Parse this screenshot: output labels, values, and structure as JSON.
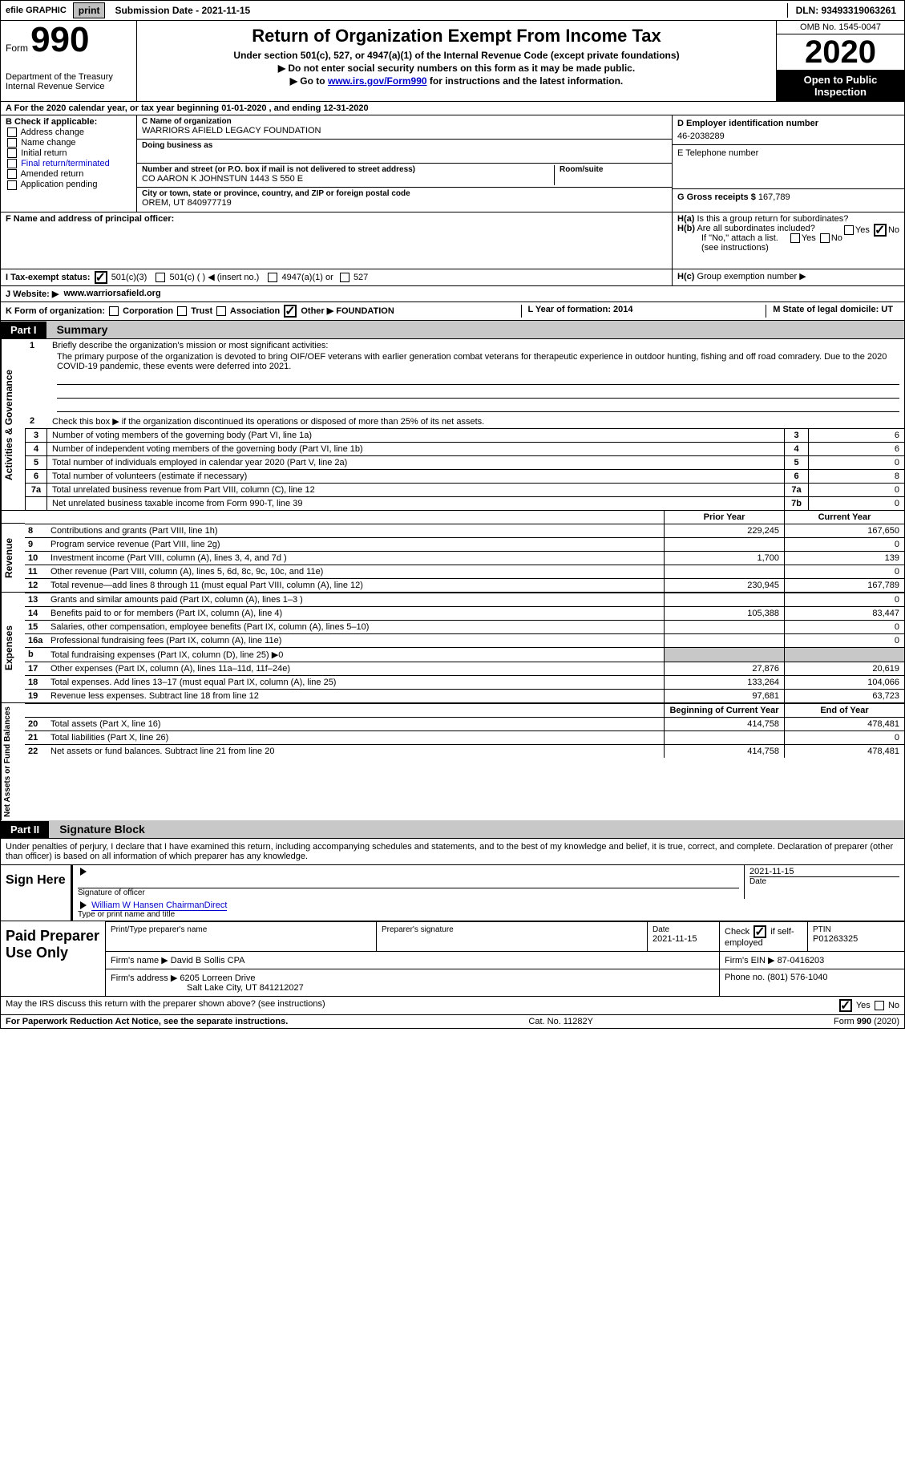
{
  "topbar": {
    "efile_label": "efile GRAPHIC",
    "print_btn": "print",
    "submission_date_label": "Submission Date - 2021-11-15",
    "dln_label": "DLN: 93493319063261"
  },
  "header": {
    "form_word": "Form",
    "form_number": "990",
    "dept": "Department of the Treasury\nInternal Revenue Service",
    "title": "Return of Organization Exempt From Income Tax",
    "subtitle": "Under section 501(c), 527, or 4947(a)(1) of the Internal Revenue Code (except private foundations)",
    "line1": "▶ Do not enter social security numbers on this form as it may be made public.",
    "line2_pre": "▶ Go to ",
    "line2_link": "www.irs.gov/Form990",
    "line2_post": " for instructions and the latest information.",
    "omb": "OMB No. 1545-0047",
    "year": "2020",
    "inspection": "Open to Public Inspection"
  },
  "a_row": "For the 2020 calendar year, or tax year beginning 01-01-2020   , and ending 12-31-2020",
  "colB": {
    "head": "B Check if applicable:",
    "opts": [
      "Address change",
      "Name change",
      "Initial return",
      "Final return/terminated",
      "Amended return",
      "Application pending"
    ]
  },
  "colC": {
    "name_label": "C Name of organization",
    "name_val": "WARRIORS AFIELD LEGACY FOUNDATION",
    "dba_label": "Doing business as",
    "addr_label": "Number and street (or P.O. box if mail is not delivered to street address)",
    "addr_val": "CO AARON K JOHNSTUN 1443 S 550 E",
    "room_label": "Room/suite",
    "city_label": "City or town, state or province, country, and ZIP or foreign postal code",
    "city_val": "OREM, UT  840977719",
    "f_label": "F Name and address of principal officer:"
  },
  "colD": {
    "ein_label": "D Employer identification number",
    "ein_val": "46-2038289",
    "phone_label": "E Telephone number",
    "gross_label": "G Gross receipts $",
    "gross_val": "167,789"
  },
  "h_block": {
    "ha_label": "H(a)",
    "ha_text": "Is this a group return for subordinates?",
    "hb_label": "H(b)",
    "hb_text": "Are all subordinates included?",
    "hb_note": "If \"No,\" attach a list. (see instructions)",
    "hc_label": "H(c)",
    "hc_text": "Group exemption number ▶",
    "yes": "Yes",
    "no": "No"
  },
  "i_row": {
    "label": "I   Tax-exempt status:",
    "o501c3": "501(c)(3)",
    "o501c": "501(c) (  ) ◀ (insert no.)",
    "o4947": "4947(a)(1) or",
    "o527": "527"
  },
  "j_row": {
    "label": "J   Website: ▶",
    "val": "www.warriorsafield.org"
  },
  "k_row": {
    "label": "K Form of organization:",
    "corp": "Corporation",
    "trust": "Trust",
    "assoc": "Association",
    "other": "Other ▶",
    "other_val": "FOUNDATION",
    "l_label": "L Year of formation: 2014",
    "m_label": "M State of legal domicile: UT"
  },
  "part1": {
    "num": "Part I",
    "title": "Summary"
  },
  "gov": {
    "side": "Activities & Governance",
    "l1": "Briefly describe the organization's mission or most significant activities:",
    "l1_text": "The primary purpose of the organization is devoted to bring OIF/OEF veterans with earlier generation combat veterans for therapeutic experience in outdoor hunting, fishing and off road comradery. Due to the 2020 COVID-19 pandemic, these events were deferred into 2021.",
    "l2": "Check this box ▶        if the organization discontinued its operations or disposed of more than 25% of its net assets.",
    "l3": "Number of voting members of the governing body (Part VI, line 1a)",
    "l4": "Number of independent voting members of the governing body (Part VI, line 1b)",
    "l5": "Total number of individuals employed in calendar year 2020 (Part V, line 2a)",
    "l6": "Total number of volunteers (estimate if necessary)",
    "l7a": "Total unrelated business revenue from Part VIII, column (C), line 12",
    "l7b": "Net unrelated business taxable income from Form 990-T, line 39",
    "v3": "6",
    "v4": "6",
    "v5": "0",
    "v6": "8",
    "v7a": "0",
    "v7b": "0"
  },
  "cols": {
    "prior": "Prior Year",
    "current": "Current Year"
  },
  "revenue": {
    "side": "Revenue",
    "rows": [
      {
        "n": "8",
        "t": "Contributions and grants (Part VIII, line 1h)",
        "p": "229,245",
        "c": "167,650"
      },
      {
        "n": "9",
        "t": "Program service revenue (Part VIII, line 2g)",
        "p": "",
        "c": "0"
      },
      {
        "n": "10",
        "t": "Investment income (Part VIII, column (A), lines 3, 4, and 7d )",
        "p": "1,700",
        "c": "139"
      },
      {
        "n": "11",
        "t": "Other revenue (Part VIII, column (A), lines 5, 6d, 8c, 9c, 10c, and 11e)",
        "p": "",
        "c": "0"
      },
      {
        "n": "12",
        "t": "Total revenue—add lines 8 through 11 (must equal Part VIII, column (A), line 12)",
        "p": "230,945",
        "c": "167,789"
      }
    ]
  },
  "expenses": {
    "side": "Expenses",
    "rows": [
      {
        "n": "13",
        "t": "Grants and similar amounts paid (Part IX, column (A), lines 1–3 )",
        "p": "",
        "c": "0"
      },
      {
        "n": "14",
        "t": "Benefits paid to or for members (Part IX, column (A), line 4)",
        "p": "105,388",
        "c": "83,447"
      },
      {
        "n": "15",
        "t": "Salaries, other compensation, employee benefits (Part IX, column (A), lines 5–10)",
        "p": "",
        "c": "0"
      },
      {
        "n": "16a",
        "t": "Professional fundraising fees (Part IX, column (A), line 11e)",
        "p": "",
        "c": "0"
      },
      {
        "n": "b",
        "t": "Total fundraising expenses (Part IX, column (D), line 25) ▶0",
        "p": "GRAY",
        "c": "GRAY"
      },
      {
        "n": "17",
        "t": "Other expenses (Part IX, column (A), lines 11a–11d, 11f–24e)",
        "p": "27,876",
        "c": "20,619"
      },
      {
        "n": "18",
        "t": "Total expenses. Add lines 13–17 (must equal Part IX, column (A), line 25)",
        "p": "133,264",
        "c": "104,066"
      },
      {
        "n": "19",
        "t": "Revenue less expenses. Subtract line 18 from line 12",
        "p": "97,681",
        "c": "63,723"
      }
    ]
  },
  "net": {
    "side": "Net Assets or Fund Balances",
    "head_p": "Beginning of Current Year",
    "head_c": "End of Year",
    "rows": [
      {
        "n": "20",
        "t": "Total assets (Part X, line 16)",
        "p": "414,758",
        "c": "478,481"
      },
      {
        "n": "21",
        "t": "Total liabilities (Part X, line 26)",
        "p": "",
        "c": "0"
      },
      {
        "n": "22",
        "t": "Net assets or fund balances. Subtract line 21 from line 20",
        "p": "414,758",
        "c": "478,481"
      }
    ]
  },
  "part2": {
    "num": "Part II",
    "title": "Signature Block",
    "decl": "Under penalties of perjury, I declare that I have examined this return, including accompanying schedules and statements, and to the best of my knowledge and belief, it is true, correct, and complete. Declaration of preparer (other than officer) is based on all information of which preparer has any knowledge."
  },
  "sign": {
    "label": "Sign Here",
    "sig_label": "Signature of officer",
    "date_label": "Date",
    "date_val": "2021-11-15",
    "name_val": "William W Hansen  ChairmanDirect",
    "name_label": "Type or print name and title"
  },
  "paid": {
    "label": "Paid Preparer Use Only",
    "h1": "Print/Type preparer's name",
    "h2": "Preparer's signature",
    "h3": "Date",
    "h3_val": "2021-11-15",
    "h4_pre": "Check",
    "h4_post": "if self-employed",
    "h5": "PTIN",
    "h5_val": "P01263325",
    "firm_name_label": "Firm's name    ▶",
    "firm_name": "David B Sollis CPA",
    "firm_ein_label": "Firm's EIN ▶",
    "firm_ein": "87-0416203",
    "firm_addr_label": "Firm's address ▶",
    "firm_addr1": "6205 Lorreen Drive",
    "firm_addr2": "Salt Lake City, UT  841212027",
    "firm_phone_label": "Phone no.",
    "firm_phone": "(801) 576-1040"
  },
  "may_irs": "May the IRS discuss this return with the preparer shown above? (see instructions)",
  "footer": {
    "left": "For Paperwork Reduction Act Notice, see the separate instructions.",
    "mid": "Cat. No. 11282Y",
    "right": "Form 990 (2020)"
  }
}
